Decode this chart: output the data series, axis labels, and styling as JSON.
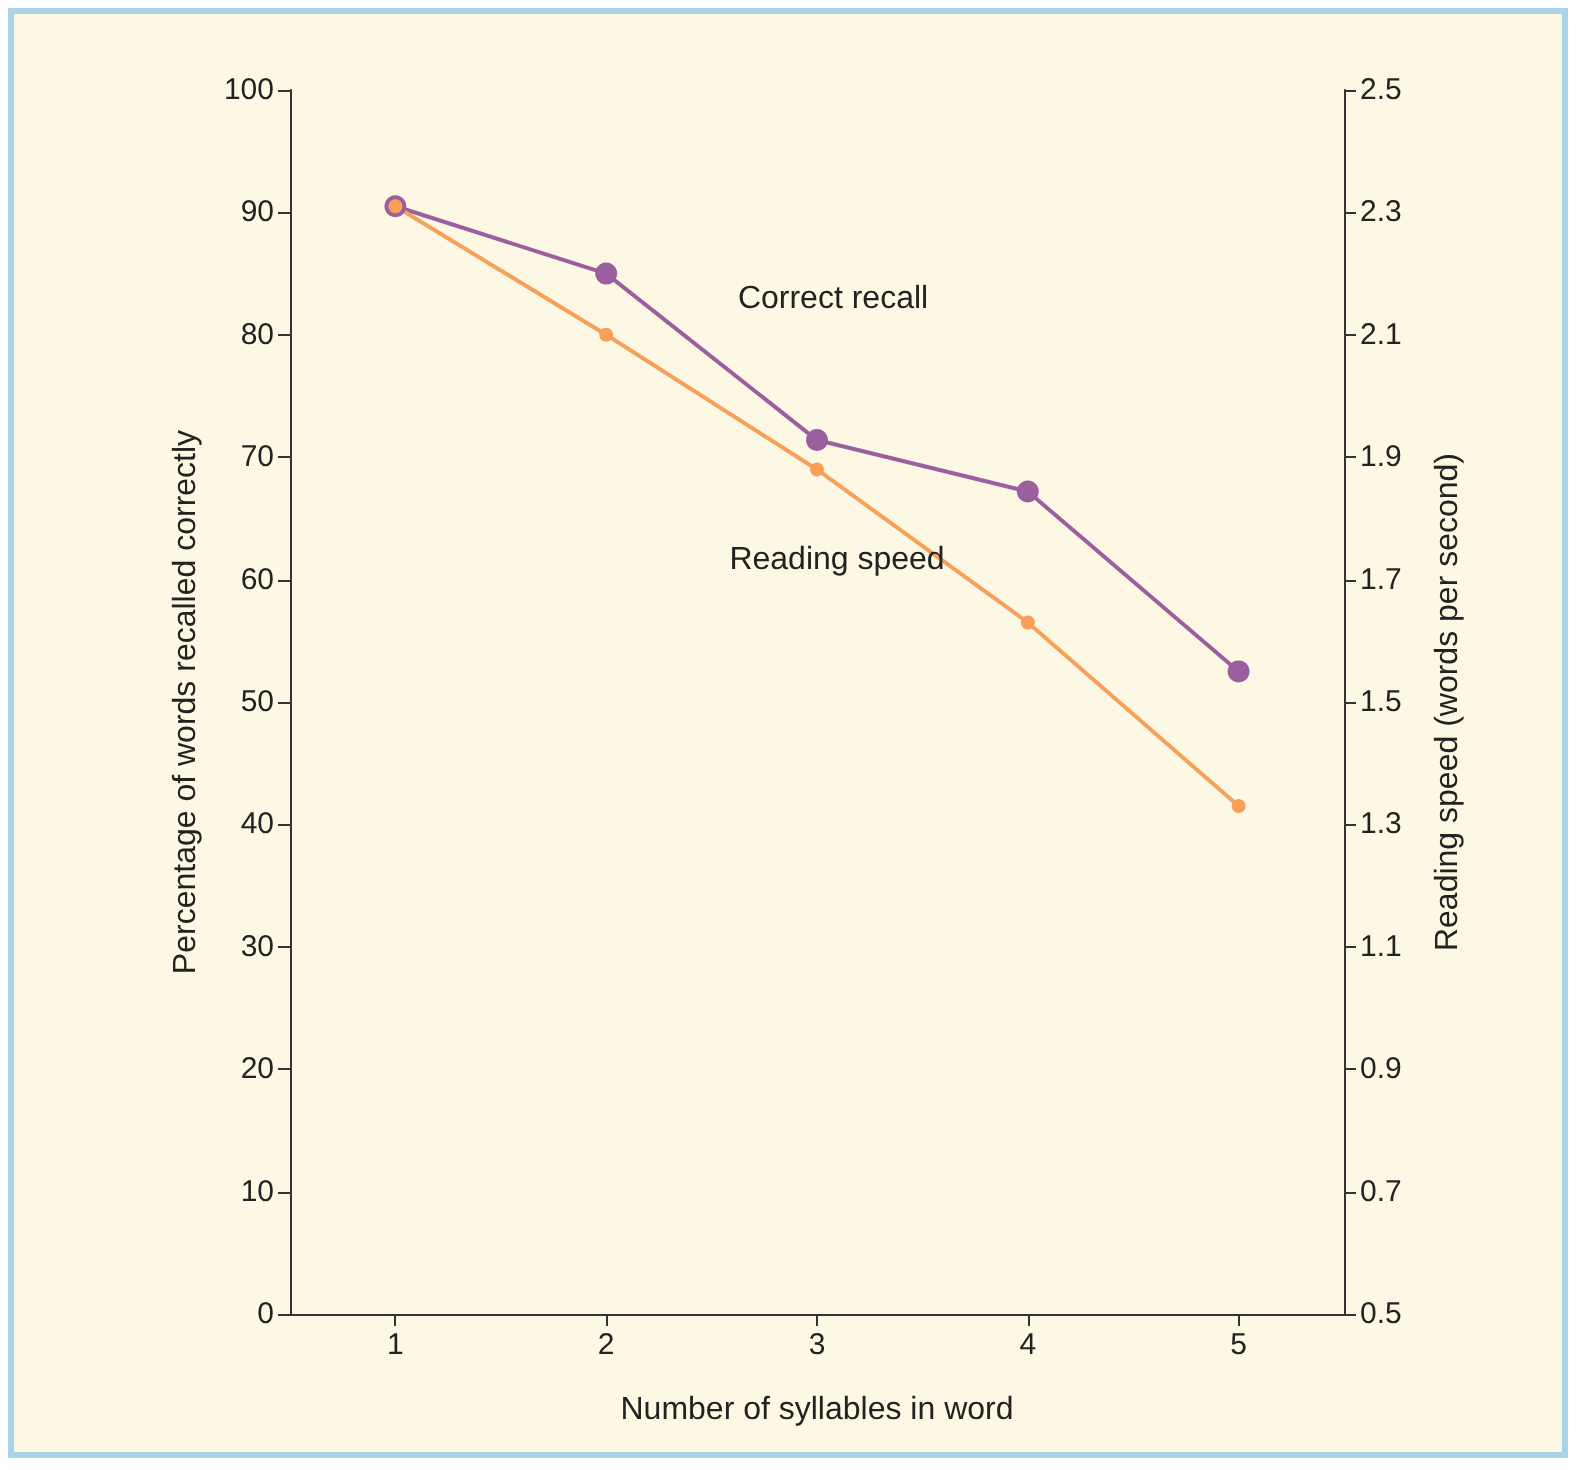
{
  "chart_data": {
    "type": "line",
    "xlabel": "Number of syllables in word",
    "ylabel": "Percentage of words recalled correctly",
    "y2label": "Reading speed (words per second)",
    "categories": [
      "1",
      "2",
      "3",
      "4",
      "5"
    ],
    "series": [
      {
        "name": "Correct recall",
        "color": "#9b5fa0",
        "values": [
          90.5,
          85.0,
          71.4,
          67.2,
          52.5
        ]
      },
      {
        "name": "Reading speed",
        "color": "#f7a05a",
        "axis": "y2",
        "values": [
          2.31,
          2.1,
          1.88,
          1.63,
          1.33
        ]
      }
    ],
    "ylim": [
      0,
      100
    ],
    "yticks": [
      0,
      10,
      20,
      30,
      40,
      50,
      60,
      70,
      80,
      90,
      100
    ],
    "y2lim": [
      0.5,
      2.5
    ],
    "y2ticks": [
      0.5,
      0.7,
      0.9,
      1.1,
      1.3,
      1.5,
      1.7,
      1.9,
      2.1,
      2.3,
      2.5
    ],
    "grid": false,
    "legend": false,
    "marker": "circle",
    "line_style": "solid"
  }
}
